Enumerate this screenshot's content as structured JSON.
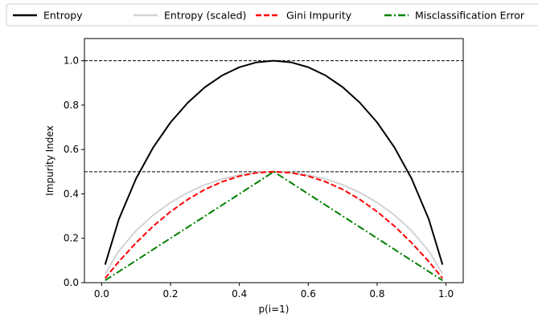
{
  "chart_data": {
    "type": "line",
    "title": "",
    "xlabel": "p(i=1)",
    "ylabel": "Impurity Index",
    "xlim": [
      -0.05,
      1.05
    ],
    "ylim": [
      0.0,
      1.1
    ],
    "x_ticks": [
      "0.0",
      "0.2",
      "0.4",
      "0.6",
      "0.8",
      "1.0"
    ],
    "y_ticks": [
      "0.0",
      "0.2",
      "0.4",
      "0.6",
      "0.8",
      "1.0"
    ],
    "grid": false,
    "legend_position": "top, outside plot, single row",
    "x": [
      0.01,
      0.05,
      0.1,
      0.15,
      0.2,
      0.25,
      0.3,
      0.35,
      0.4,
      0.45,
      0.5,
      0.55,
      0.6,
      0.65,
      0.7,
      0.75,
      0.8,
      0.85,
      0.9,
      0.95,
      0.99
    ],
    "series": [
      {
        "name": "Entropy",
        "color": "#000000",
        "style": "solid",
        "values": [
          0.081,
          0.286,
          0.469,
          0.61,
          0.722,
          0.811,
          0.881,
          0.934,
          0.971,
          0.993,
          1.0,
          0.993,
          0.971,
          0.934,
          0.881,
          0.811,
          0.722,
          0.61,
          0.469,
          0.286,
          0.081
        ]
      },
      {
        "name": "Entropy (scaled)",
        "color": "#d3d3d3",
        "style": "solid",
        "values": [
          0.04,
          0.143,
          0.234,
          0.305,
          0.361,
          0.406,
          0.441,
          0.467,
          0.485,
          0.496,
          0.5,
          0.496,
          0.485,
          0.467,
          0.441,
          0.406,
          0.361,
          0.305,
          0.234,
          0.143,
          0.04
        ]
      },
      {
        "name": "Gini Impurity",
        "color": "#ff0000",
        "style": "dashed",
        "values": [
          0.02,
          0.095,
          0.18,
          0.255,
          0.32,
          0.375,
          0.42,
          0.455,
          0.48,
          0.495,
          0.5,
          0.495,
          0.48,
          0.455,
          0.42,
          0.375,
          0.32,
          0.255,
          0.18,
          0.095,
          0.02
        ]
      },
      {
        "name": "Misclassification Error",
        "color": "#008000",
        "style": "dashdot",
        "values": [
          0.01,
          0.05,
          0.1,
          0.15,
          0.2,
          0.25,
          0.3,
          0.35,
          0.4,
          0.45,
          0.5,
          0.45,
          0.4,
          0.35,
          0.3,
          0.25,
          0.2,
          0.15,
          0.1,
          0.05,
          0.01
        ]
      }
    ],
    "reference_lines": [
      {
        "axis": "y",
        "value": 0.5,
        "color": "#000000",
        "style": "dashed"
      },
      {
        "axis": "y",
        "value": 1.0,
        "color": "#000000",
        "style": "dashed"
      }
    ]
  }
}
